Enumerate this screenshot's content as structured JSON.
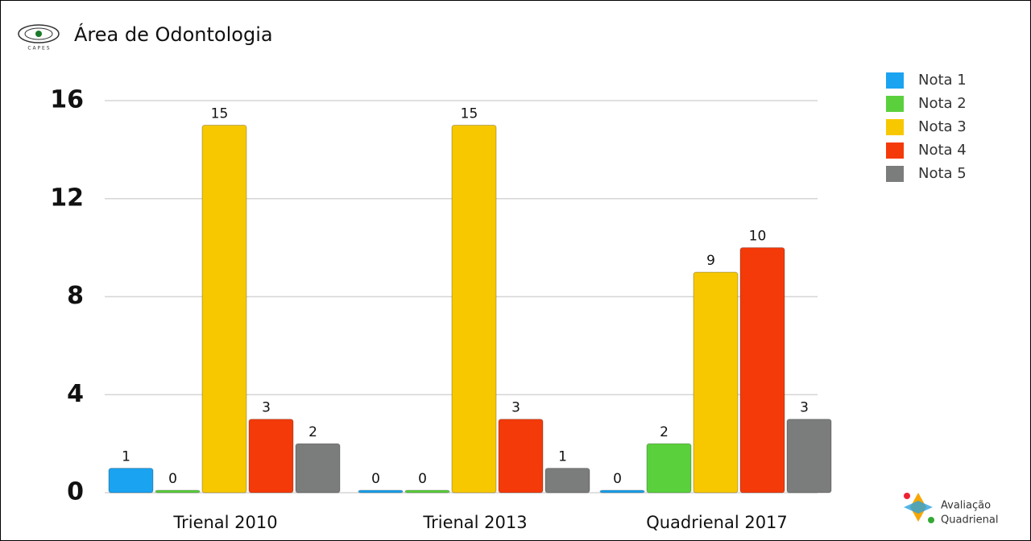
{
  "chart_data": {
    "type": "bar",
    "title": "Área de Odontologia",
    "categories": [
      "Trienal 2010",
      "Trienal 2013",
      "Quadrienal 2017"
    ],
    "series": [
      {
        "name": "Nota 1",
        "color": "#1aa3f0",
        "values": [
          1,
          0,
          0
        ]
      },
      {
        "name": "Nota 2",
        "color": "#5ad13c",
        "values": [
          0,
          0,
          2
        ]
      },
      {
        "name": "Nota 3",
        "color": "#f7c800",
        "values": [
          15,
          15,
          9
        ]
      },
      {
        "name": "Nota 4",
        "color": "#f53a0a",
        "values": [
          3,
          3,
          10
        ]
      },
      {
        "name": "Nota 5",
        "color": "#7a7d7c",
        "values": [
          2,
          1,
          3
        ]
      }
    ],
    "ylim": [
      0,
      16
    ],
    "yticks": [
      0,
      4,
      8,
      12,
      16
    ],
    "grid": true,
    "legend": "top-right"
  },
  "logos": {
    "capes": "C A P E S",
    "avaliacao": "Avaliação",
    "quadrienal": "Quadrienal"
  }
}
